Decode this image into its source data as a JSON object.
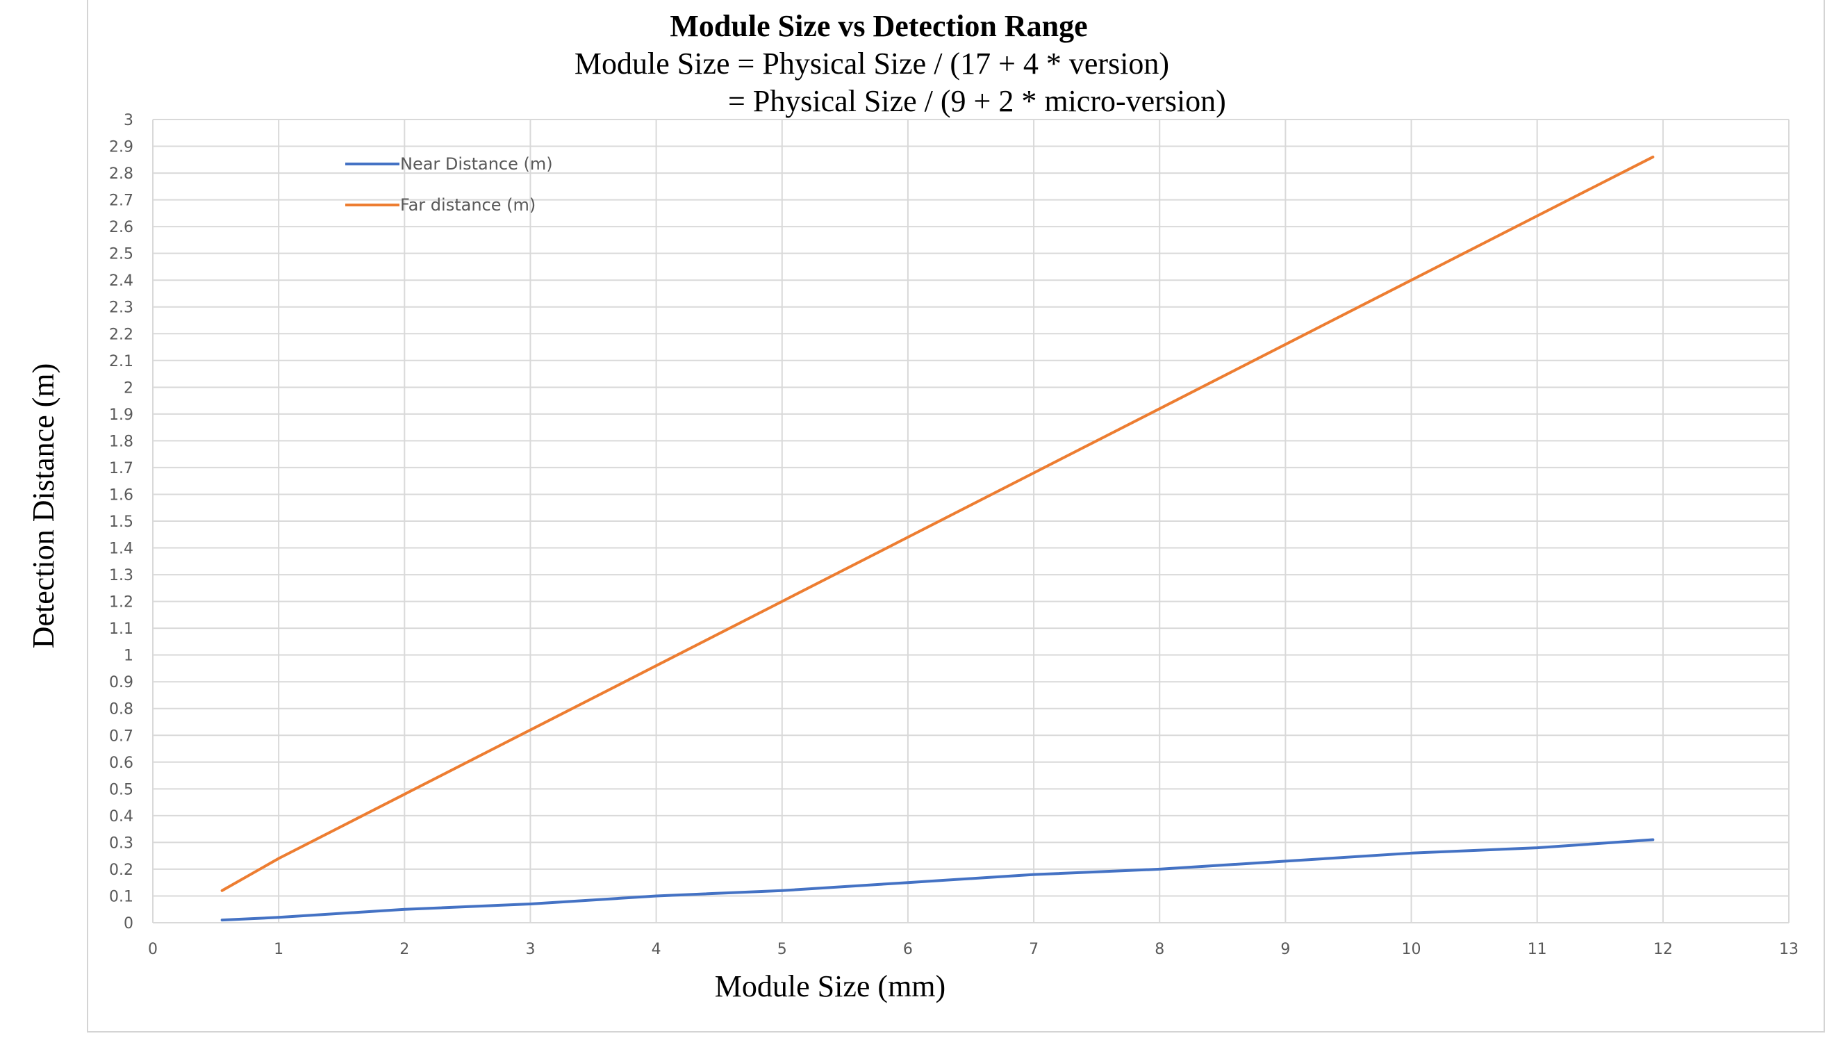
{
  "chart_data": {
    "type": "line",
    "title": "Module Size vs Detection Range",
    "subtitle_lines": [
      "Module Size = Physical Size / (17 + 4 * version)",
      "= Physical Size / (9 + 2 * micro-version)"
    ],
    "xlabel": "Module Size (mm)",
    "ylabel": "Detection Distance (m)",
    "xlim": [
      0,
      13
    ],
    "ylim": [
      0,
      3
    ],
    "x_ticks": [
      0,
      1,
      2,
      3,
      4,
      5,
      6,
      7,
      8,
      9,
      10,
      11,
      12,
      13
    ],
    "y_ticks": [
      0,
      0.1,
      0.2,
      0.3,
      0.4,
      0.5,
      0.6,
      0.7,
      0.8,
      0.9,
      1,
      1.1,
      1.2,
      1.3,
      1.4,
      1.5,
      1.6,
      1.7,
      1.8,
      1.9,
      2,
      2.1,
      2.2,
      2.3,
      2.4,
      2.5,
      2.6,
      2.7,
      2.8,
      2.9,
      3
    ],
    "grid": true,
    "legend_position": "top-left",
    "series": [
      {
        "name": "Near Distance (m)",
        "color": "#4472C4",
        "x": [
          0.55,
          1,
          2,
          3,
          4,
          5,
          6,
          7,
          8,
          9,
          10,
          11,
          11.92
        ],
        "y": [
          0.01,
          0.02,
          0.05,
          0.07,
          0.1,
          0.12,
          0.15,
          0.18,
          0.2,
          0.23,
          0.26,
          0.28,
          0.31
        ]
      },
      {
        "name": "Far distance (m)",
        "color": "#ED7D31",
        "x": [
          0.55,
          1,
          2,
          3,
          4,
          5,
          6,
          7,
          8,
          9,
          10,
          11,
          11.92
        ],
        "y": [
          0.12,
          0.24,
          0.48,
          0.72,
          0.96,
          1.2,
          1.44,
          1.68,
          1.92,
          2.16,
          2.4,
          2.64,
          2.86
        ]
      }
    ]
  }
}
